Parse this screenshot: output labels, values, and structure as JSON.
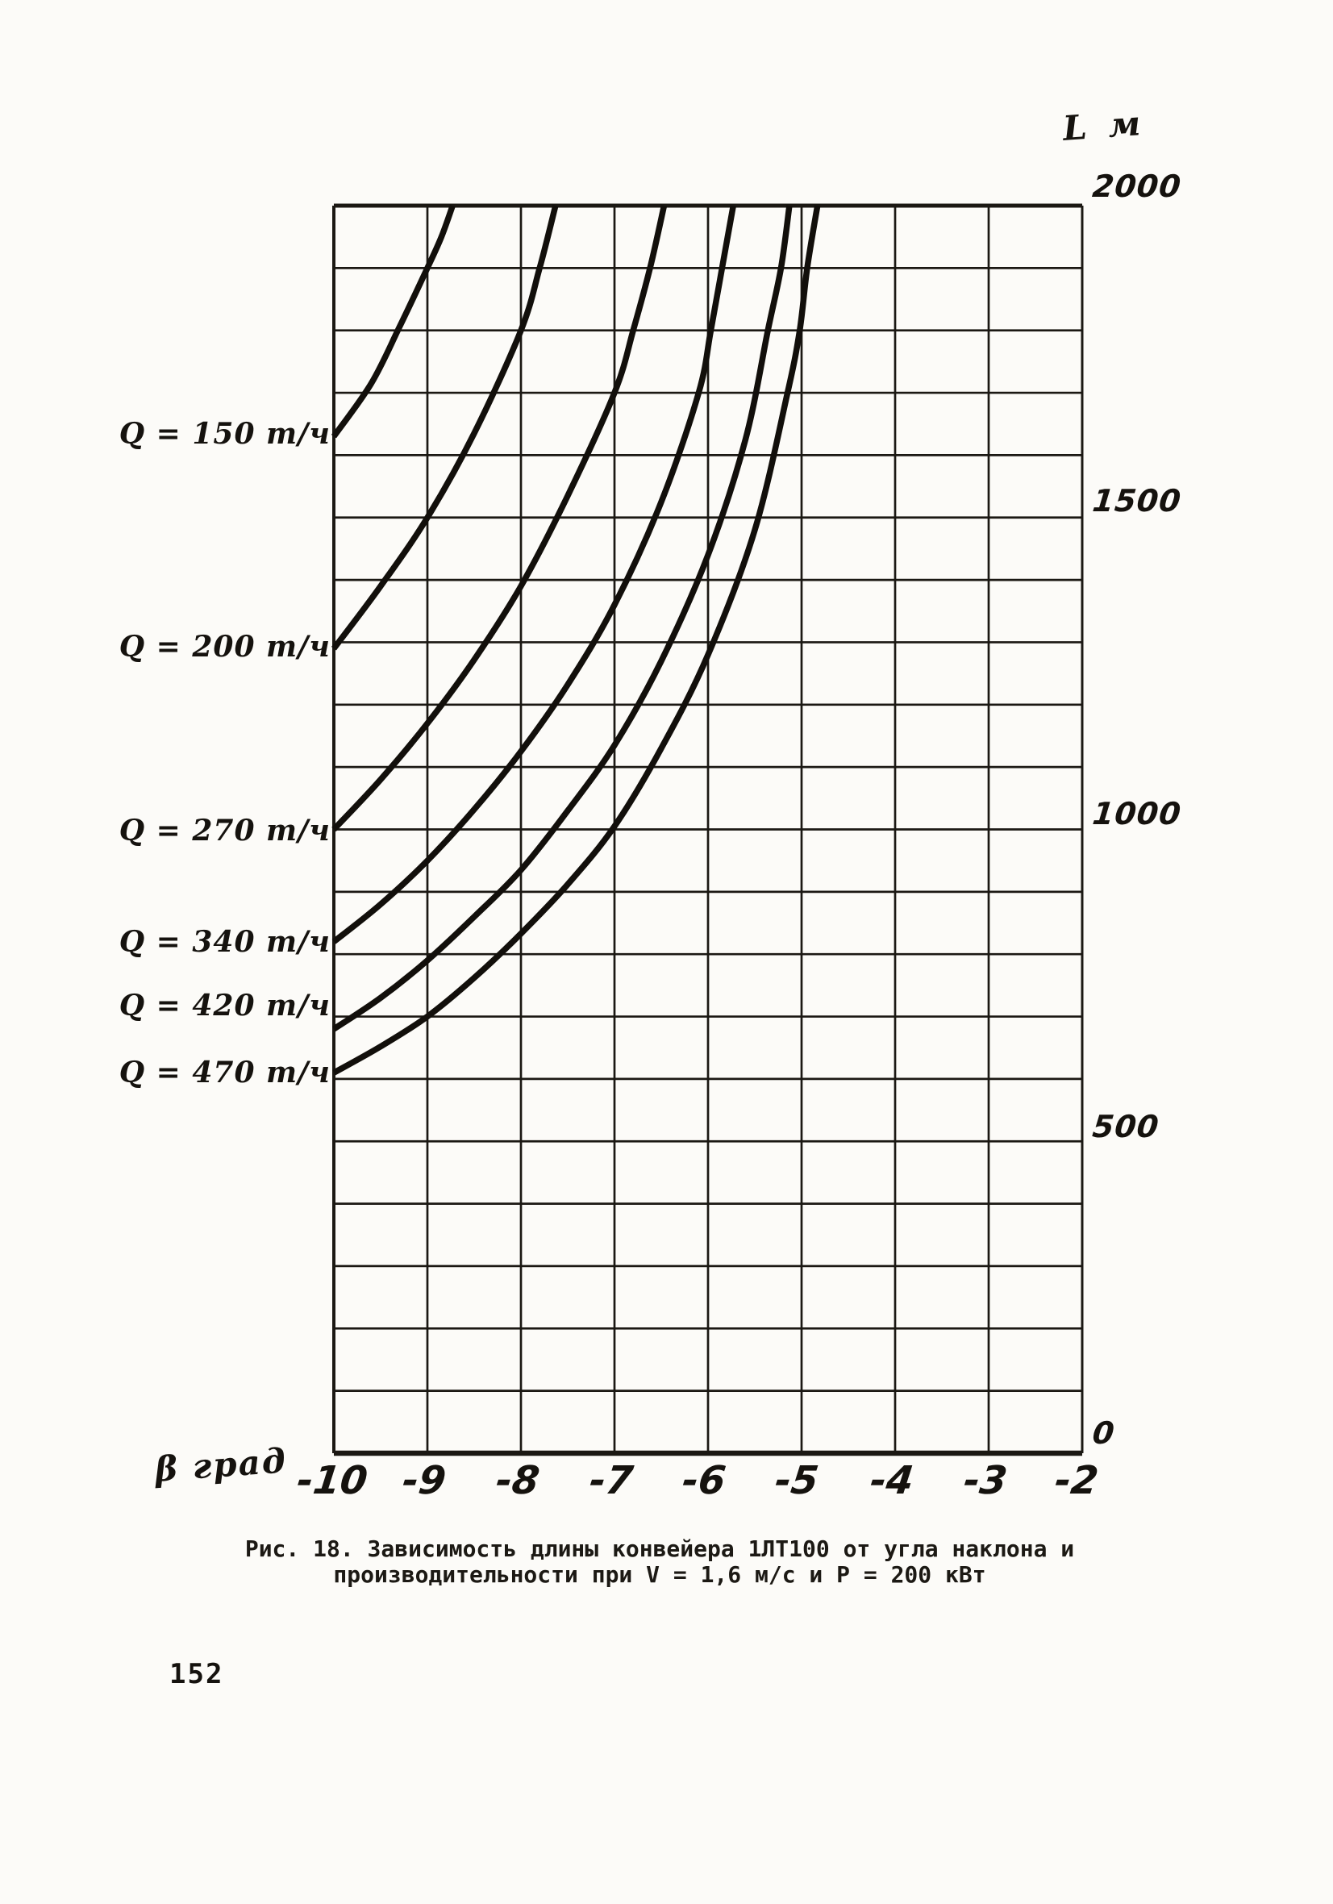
{
  "page": {
    "number": "152"
  },
  "caption": {
    "line1": "Рис. 18. Зависимость длины конвейера 1ЛТ100 от угла наклона и",
    "line2": "производительности при V = 1,6 м/с и Р = 200 кВт"
  },
  "chart_data": {
    "type": "line",
    "title": "Зависимость длины конвейера 1ЛТ100 от угла наклона и производительности при V = 1,6 м/с и P = 200 кВт",
    "xlabel": "β град",
    "ylabel": "L м",
    "xlim": [
      -10,
      -2
    ],
    "ylim": [
      0,
      2000
    ],
    "x_ticks": [
      "-10",
      "-9",
      "-8",
      "-7",
      "-6",
      "-5",
      "-4",
      "-3",
      "-2"
    ],
    "y_ticks": [
      "2000",
      "1500",
      "1000",
      "500",
      "0"
    ],
    "grid": {
      "visible": true,
      "x_step": 1,
      "y_step": 100
    },
    "legend_position": "left-margin",
    "series": [
      {
        "label": "Q = 150 т/ч",
        "q_t_per_h": 150,
        "points": [
          [
            -10,
            1630
          ],
          [
            -9.6,
            1715
          ],
          [
            -9.3,
            1805
          ],
          [
            -9.0,
            1900
          ],
          [
            -8.85,
            1950
          ],
          [
            -8.73,
            2000
          ]
        ]
      },
      {
        "label": "Q = 200 т/ч",
        "q_t_per_h": 200,
        "points": [
          [
            -10,
            1290
          ],
          [
            -9.5,
            1390
          ],
          [
            -9.0,
            1500
          ],
          [
            -8.5,
            1635
          ],
          [
            -8.0,
            1800
          ],
          [
            -7.8,
            1900
          ],
          [
            -7.63,
            2000
          ]
        ]
      },
      {
        "label": "Q = 270 т/ч",
        "q_t_per_h": 270,
        "points": [
          [
            -10,
            1000
          ],
          [
            -9.5,
            1080
          ],
          [
            -9.0,
            1170
          ],
          [
            -8.5,
            1272
          ],
          [
            -8.0,
            1390
          ],
          [
            -7.5,
            1535
          ],
          [
            -7.0,
            1700
          ],
          [
            -6.8,
            1800
          ],
          [
            -6.62,
            1900
          ],
          [
            -6.47,
            2000
          ]
        ]
      },
      {
        "label": "Q = 340 т/ч",
        "q_t_per_h": 340,
        "points": [
          [
            -10,
            820
          ],
          [
            -9.5,
            880
          ],
          [
            -9.0,
            950
          ],
          [
            -8.5,
            1032
          ],
          [
            -8.0,
            1125
          ],
          [
            -7.5,
            1232
          ],
          [
            -7.0,
            1360
          ],
          [
            -6.5,
            1525
          ],
          [
            -6.1,
            1700
          ],
          [
            -5.97,
            1800
          ],
          [
            -5.85,
            1900
          ],
          [
            -5.73,
            2000
          ]
        ]
      },
      {
        "label": "Q = 420 т/ч",
        "q_t_per_h": 420,
        "points": [
          [
            -10,
            680
          ],
          [
            -9.5,
            730
          ],
          [
            -9.0,
            790
          ],
          [
            -8.5,
            860
          ],
          [
            -8.0,
            935
          ],
          [
            -7.5,
            1030
          ],
          [
            -7.0,
            1135
          ],
          [
            -6.5,
            1270
          ],
          [
            -6.0,
            1440
          ],
          [
            -5.6,
            1625
          ],
          [
            -5.36,
            1800
          ],
          [
            -5.22,
            1900
          ],
          [
            -5.13,
            2000
          ]
        ]
      },
      {
        "label": "Q = 470 т/ч",
        "q_t_per_h": 470,
        "points": [
          [
            -10,
            610
          ],
          [
            -9.5,
            652
          ],
          [
            -9.0,
            700
          ],
          [
            -8.5,
            762
          ],
          [
            -8.0,
            833
          ],
          [
            -7.5,
            912
          ],
          [
            -7.0,
            1005
          ],
          [
            -6.5,
            1130
          ],
          [
            -6.0,
            1280
          ],
          [
            -5.5,
            1480
          ],
          [
            -5.15,
            1700
          ],
          [
            -5.02,
            1800
          ],
          [
            -4.94,
            1900
          ],
          [
            -4.83,
            2000
          ]
        ]
      }
    ]
  }
}
